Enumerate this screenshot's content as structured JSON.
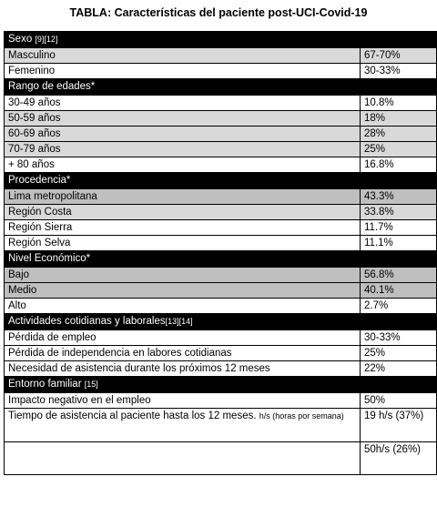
{
  "title": "TABLA: Características del paciente post-UCI-Covid-19",
  "sections": {
    "sexo": {
      "label": "Sexo",
      "ref": "[9][12]"
    },
    "edades": {
      "label": "Rango de edades*"
    },
    "procedencia": {
      "label": "Procedencia*"
    },
    "nivel": {
      "label": "Nivel Económico*"
    },
    "actividades": {
      "label": "Actividades cotidianas y laborales",
      "ref": "[13][14]"
    },
    "entorno": {
      "label": "Entorno familiar",
      "ref": "[15]"
    }
  },
  "rows": {
    "masculino": {
      "label": "Masculino",
      "value": "67-70%"
    },
    "femenino": {
      "label": "Femenino",
      "value": "30-33%"
    },
    "e30": {
      "label": "30-49 años",
      "value": "10.8%"
    },
    "e50": {
      "label": "50-59 años",
      "value": "18%"
    },
    "e60": {
      "label": "60-69 años",
      "value": "28%"
    },
    "e70": {
      "label": "70-79 años",
      "value": "25%"
    },
    "e80": {
      "label": "+ 80 años",
      "value": "16.8%"
    },
    "lima": {
      "label": "Lima metropolitana",
      "value": "43.3%"
    },
    "costa": {
      "label": "Región Costa",
      "value": "33.8%"
    },
    "sierra": {
      "label": "Región Sierra",
      "value": "11.7%"
    },
    "selva": {
      "label": "Región Selva",
      "value": "11.1%"
    },
    "bajo": {
      "label": "Bajo",
      "value": "56.8%"
    },
    "medio": {
      "label": "Medio",
      "value": "40.1%"
    },
    "alto": {
      "label": "Alto",
      "value": "2.7%"
    },
    "empleo": {
      "label": "Pérdida de empleo",
      "value": "30-33%"
    },
    "independencia": {
      "label": "Pérdida de independencia en labores cotidianas",
      "value": "25%"
    },
    "asistencia": {
      "label": "Necesidad de asistencia durante los próximos 12 meses",
      "value": "22%"
    },
    "impacto": {
      "label": "Impacto negativo en el empleo",
      "value": "50%"
    },
    "tiempo": {
      "label": "Tiempo de asistencia al paciente hasta los 12 meses.",
      "note": "h/s (horas por semana)",
      "value": "19 h/s (37%)"
    },
    "tiempo2": {
      "value": "50h/s (26%)"
    }
  }
}
